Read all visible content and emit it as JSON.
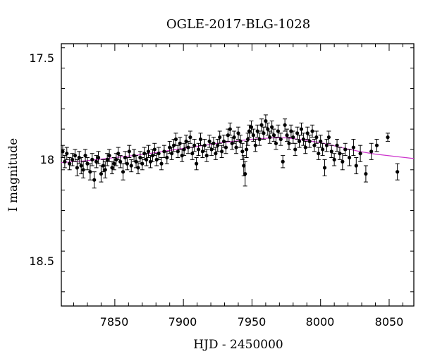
{
  "chart_data": {
    "type": "scatter",
    "title": "OGLE-2017-BLG-1028",
    "xlabel": "HJD - 2450000",
    "ylabel": "I magnitude",
    "xlim": [
      7811,
      8068
    ],
    "ylim": [
      18.72,
      17.43
    ],
    "y_inverted": true,
    "x_ticks": [
      "7850",
      "7900",
      "7950",
      "8000",
      "8050"
    ],
    "y_ticks": [
      "17.5",
      "18",
      "18.5"
    ],
    "grid": false,
    "series": [
      {
        "kind": "points_with_errorbars",
        "color": "#000000",
        "points": [
          [
            7812.0,
            17.96,
            0.03
          ],
          [
            7813.5,
            18.01,
            0.03
          ],
          [
            7815.0,
            17.97,
            0.03
          ],
          [
            7817.0,
            18.02,
            0.03
          ],
          [
            7819.0,
            18.0,
            0.03
          ],
          [
            7821.0,
            17.98,
            0.03
          ],
          [
            7822.5,
            18.04,
            0.04
          ],
          [
            7824.0,
            17.99,
            0.03
          ],
          [
            7825.5,
            18.03,
            0.04
          ],
          [
            7827.0,
            18.05,
            0.04
          ],
          [
            7828.5,
            17.98,
            0.03
          ],
          [
            7830.0,
            18.02,
            0.03
          ],
          [
            7832.0,
            18.06,
            0.04
          ],
          [
            7833.5,
            18.0,
            0.03
          ],
          [
            7835.0,
            18.1,
            0.04
          ],
          [
            7836.5,
            18.01,
            0.03
          ],
          [
            7838.0,
            17.99,
            0.03
          ],
          [
            7840.0,
            18.07,
            0.04
          ],
          [
            7841.5,
            18.03,
            0.03
          ],
          [
            7843.0,
            18.05,
            0.04
          ],
          [
            7844.5,
            18.0,
            0.03
          ],
          [
            7846.0,
            17.98,
            0.03
          ],
          [
            7848.0,
            18.04,
            0.03
          ],
          [
            7849.5,
            18.02,
            0.03
          ],
          [
            7851.0,
            18.0,
            0.03
          ],
          [
            7852.5,
            17.97,
            0.03
          ],
          [
            7854.0,
            18.01,
            0.03
          ],
          [
            7856.0,
            18.06,
            0.04
          ],
          [
            7857.5,
            17.99,
            0.03
          ],
          [
            7859.0,
            18.02,
            0.03
          ],
          [
            7860.5,
            17.96,
            0.03
          ],
          [
            7862.0,
            18.03,
            0.03
          ],
          [
            7864.0,
            17.98,
            0.03
          ],
          [
            7865.5,
            18.01,
            0.03
          ],
          [
            7867.0,
            18.04,
            0.03
          ],
          [
            7868.5,
            17.99,
            0.03
          ],
          [
            7870.0,
            18.02,
            0.03
          ],
          [
            7871.5,
            17.97,
            0.03
          ],
          [
            7873.0,
            18.0,
            0.03
          ],
          [
            7874.5,
            17.96,
            0.03
          ],
          [
            7876.0,
            18.01,
            0.03
          ],
          [
            7877.5,
            17.98,
            0.03
          ],
          [
            7879.0,
            17.95,
            0.03
          ],
          [
            7880.5,
            18.0,
            0.03
          ],
          [
            7882.0,
            17.97,
            0.03
          ],
          [
            7884.0,
            18.02,
            0.03
          ],
          [
            7886.0,
            17.96,
            0.03
          ],
          [
            7888.0,
            17.99,
            0.03
          ],
          [
            7890.0,
            17.94,
            0.03
          ],
          [
            7891.5,
            17.97,
            0.03
          ],
          [
            7893.0,
            17.93,
            0.03
          ],
          [
            7894.5,
            17.9,
            0.03
          ],
          [
            7896.0,
            17.96,
            0.03
          ],
          [
            7897.5,
            17.92,
            0.03
          ],
          [
            7899.0,
            17.98,
            0.03
          ],
          [
            7900.5,
            17.95,
            0.03
          ],
          [
            7902.0,
            17.91,
            0.03
          ],
          [
            7903.5,
            17.94,
            0.03
          ],
          [
            7905.0,
            17.89,
            0.03
          ],
          [
            7906.5,
            17.97,
            0.03
          ],
          [
            7908.0,
            17.93,
            0.03
          ],
          [
            7909.5,
            18.02,
            0.03
          ],
          [
            7911.0,
            17.95,
            0.03
          ],
          [
            7912.5,
            17.9,
            0.03
          ],
          [
            7914.0,
            17.96,
            0.03
          ],
          [
            7915.5,
            17.93,
            0.03
          ],
          [
            7917.0,
            17.98,
            0.03
          ],
          [
            7919.0,
            17.91,
            0.03
          ],
          [
            7920.5,
            17.95,
            0.03
          ],
          [
            7922.0,
            17.92,
            0.03
          ],
          [
            7923.5,
            17.97,
            0.03
          ],
          [
            7925.0,
            17.93,
            0.03
          ],
          [
            7926.5,
            17.89,
            0.03
          ],
          [
            7928.0,
            17.96,
            0.03
          ],
          [
            7929.5,
            17.91,
            0.03
          ],
          [
            7931.0,
            17.94,
            0.03
          ],
          [
            7932.5,
            17.88,
            0.03
          ],
          [
            7934.0,
            17.85,
            0.03
          ],
          [
            7935.5,
            17.92,
            0.03
          ],
          [
            7937.0,
            17.89,
            0.03
          ],
          [
            7938.5,
            17.94,
            0.03
          ],
          [
            7940.0,
            17.87,
            0.03
          ],
          [
            7941.5,
            17.91,
            0.03
          ],
          [
            7943.0,
            17.96,
            0.04
          ],
          [
            7944.0,
            18.03,
            0.05
          ],
          [
            7945.0,
            18.07,
            0.06
          ],
          [
            7946.0,
            17.95,
            0.04
          ],
          [
            7947.0,
            17.9,
            0.03
          ],
          [
            7948.0,
            17.86,
            0.03
          ],
          [
            7949.5,
            17.84,
            0.03
          ],
          [
            7951.0,
            17.88,
            0.03
          ],
          [
            7952.5,
            17.93,
            0.03
          ],
          [
            7954.0,
            17.86,
            0.03
          ],
          [
            7955.5,
            17.9,
            0.03
          ],
          [
            7957.0,
            17.83,
            0.03
          ],
          [
            7958.5,
            17.87,
            0.03
          ],
          [
            7960.0,
            17.81,
            0.03
          ],
          [
            7961.5,
            17.85,
            0.03
          ],
          [
            7963.0,
            17.89,
            0.03
          ],
          [
            7964.5,
            17.84,
            0.03
          ],
          [
            7966.0,
            17.88,
            0.03
          ],
          [
            7967.5,
            17.92,
            0.03
          ],
          [
            7969.0,
            17.86,
            0.03
          ],
          [
            7971.0,
            17.9,
            0.03
          ],
          [
            7972.5,
            18.01,
            0.03
          ],
          [
            7974.0,
            17.83,
            0.03
          ],
          [
            7975.5,
            17.88,
            0.03
          ],
          [
            7977.0,
            17.92,
            0.03
          ],
          [
            7978.5,
            17.86,
            0.03
          ],
          [
            7980.0,
            17.89,
            0.03
          ],
          [
            7981.5,
            17.95,
            0.03
          ],
          [
            7983.0,
            17.87,
            0.03
          ],
          [
            7984.5,
            17.91,
            0.03
          ],
          [
            7986.0,
            17.85,
            0.03
          ],
          [
            7987.5,
            17.9,
            0.03
          ],
          [
            7989.0,
            17.94,
            0.03
          ],
          [
            7990.5,
            17.87,
            0.03
          ],
          [
            7992.0,
            17.91,
            0.03
          ],
          [
            7994.0,
            17.86,
            0.03
          ],
          [
            7995.5,
            17.93,
            0.03
          ],
          [
            7997.0,
            17.89,
            0.03
          ],
          [
            7998.5,
            17.97,
            0.03
          ],
          [
            8000.0,
            17.91,
            0.03
          ],
          [
            8001.5,
            17.95,
            0.03
          ],
          [
            8003.0,
            18.04,
            0.04
          ],
          [
            8004.5,
            17.93,
            0.03
          ],
          [
            8006.0,
            17.89,
            0.03
          ],
          [
            8008.0,
            17.96,
            0.03
          ],
          [
            8010.0,
            18.0,
            0.03
          ],
          [
            8012.0,
            17.93,
            0.03
          ],
          [
            8014.0,
            17.97,
            0.03
          ],
          [
            8016.0,
            18.01,
            0.04
          ],
          [
            8018.0,
            17.95,
            0.03
          ],
          [
            8021.0,
            17.99,
            0.04
          ],
          [
            8024.0,
            17.94,
            0.04
          ],
          [
            8026.0,
            18.03,
            0.04
          ],
          [
            8029.0,
            17.97,
            0.04
          ],
          [
            8033.0,
            18.07,
            0.04
          ],
          [
            8037.0,
            17.96,
            0.04
          ],
          [
            8041.0,
            17.93,
            0.03
          ],
          [
            8049.0,
            17.89,
            0.02
          ],
          [
            8056.0,
            18.06,
            0.04
          ]
        ]
      },
      {
        "kind": "model_curve",
        "color": "#cc33cc",
        "points": [
          [
            7811,
            18.015
          ],
          [
            7830,
            18.005
          ],
          [
            7850,
            17.99
          ],
          [
            7870,
            17.975
          ],
          [
            7890,
            17.955
          ],
          [
            7910,
            17.935
          ],
          [
            7930,
            17.915
          ],
          [
            7950,
            17.9
          ],
          [
            7965,
            17.893
          ],
          [
            7975,
            17.893
          ],
          [
            7990,
            17.905
          ],
          [
            8000,
            17.917
          ],
          [
            8010,
            17.932
          ],
          [
            8020,
            17.948
          ],
          [
            8030,
            17.962
          ],
          [
            8040,
            17.973
          ],
          [
            8055,
            17.985
          ],
          [
            8068,
            17.995
          ]
        ]
      }
    ]
  }
}
